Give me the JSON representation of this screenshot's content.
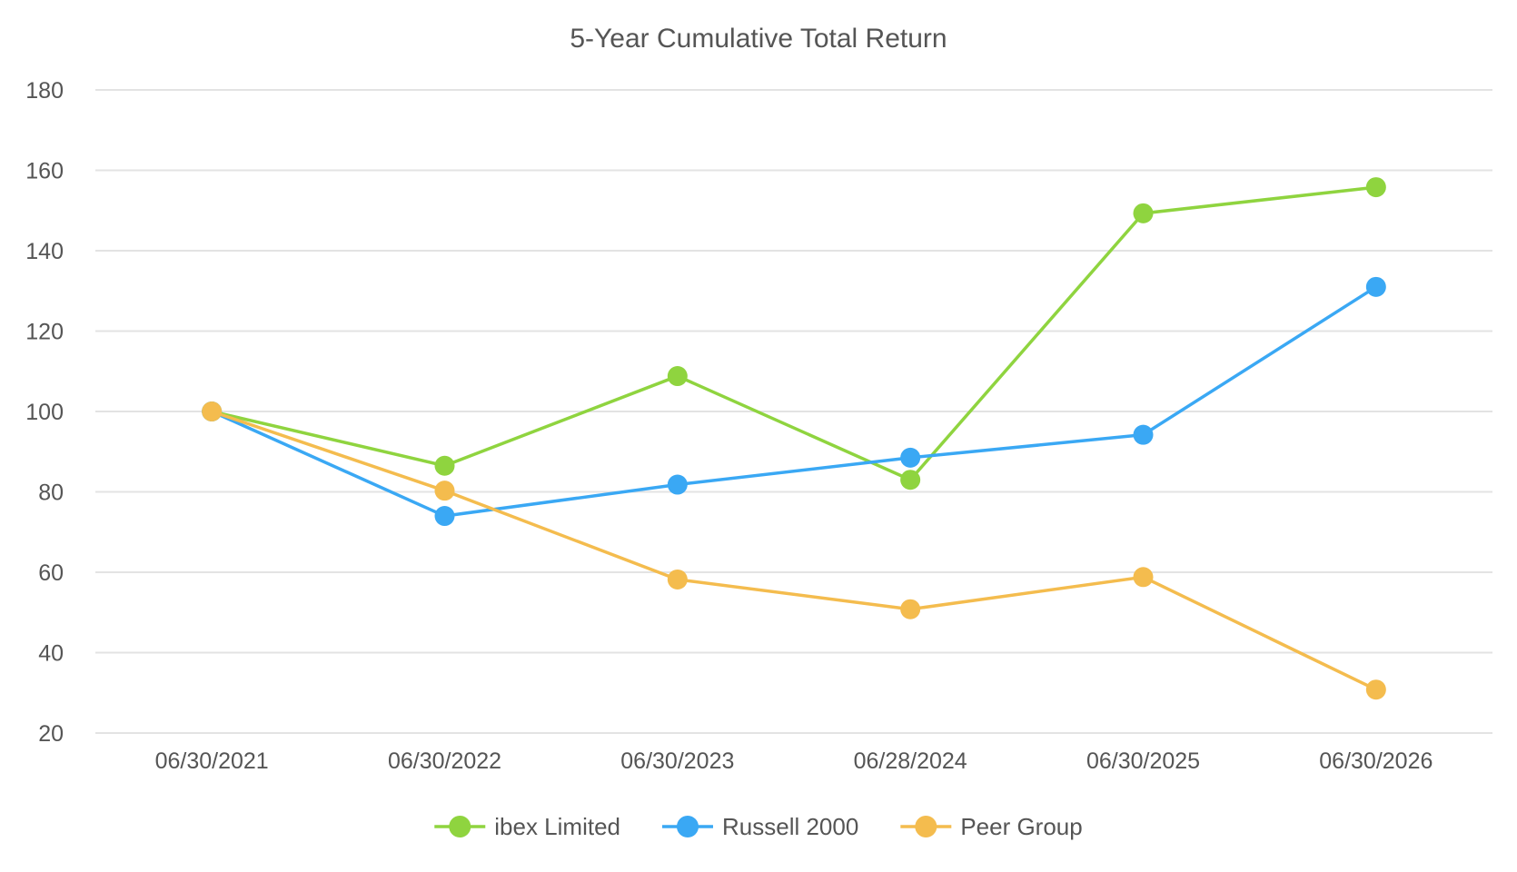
{
  "chart_data": {
    "type": "line",
    "title": "5-Year Cumulative Total Return",
    "xlabel": "",
    "ylabel": "",
    "categories": [
      "06/30/2021",
      "06/30/2022",
      "06/30/2023",
      "06/28/2024",
      "06/30/2025",
      "06/30/2026"
    ],
    "ylim": [
      20,
      180
    ],
    "yticks": [
      180,
      160,
      140,
      120,
      100,
      80,
      60,
      40,
      20
    ],
    "grid": true,
    "legend_position": "bottom-center",
    "series": [
      {
        "name": "ibex Limited",
        "color": "#8fd43f",
        "values": [
          100,
          86.5,
          108.8,
          83,
          149.3,
          155.8
        ]
      },
      {
        "name": "Russell 2000",
        "color": "#3aa8f4",
        "values": [
          100,
          74,
          81.8,
          88.5,
          94.2,
          131
        ]
      },
      {
        "name": "Peer Group",
        "color": "#f4bc4e",
        "values": [
          100,
          80.3,
          58.2,
          50.8,
          58.8,
          30.8
        ]
      }
    ]
  }
}
